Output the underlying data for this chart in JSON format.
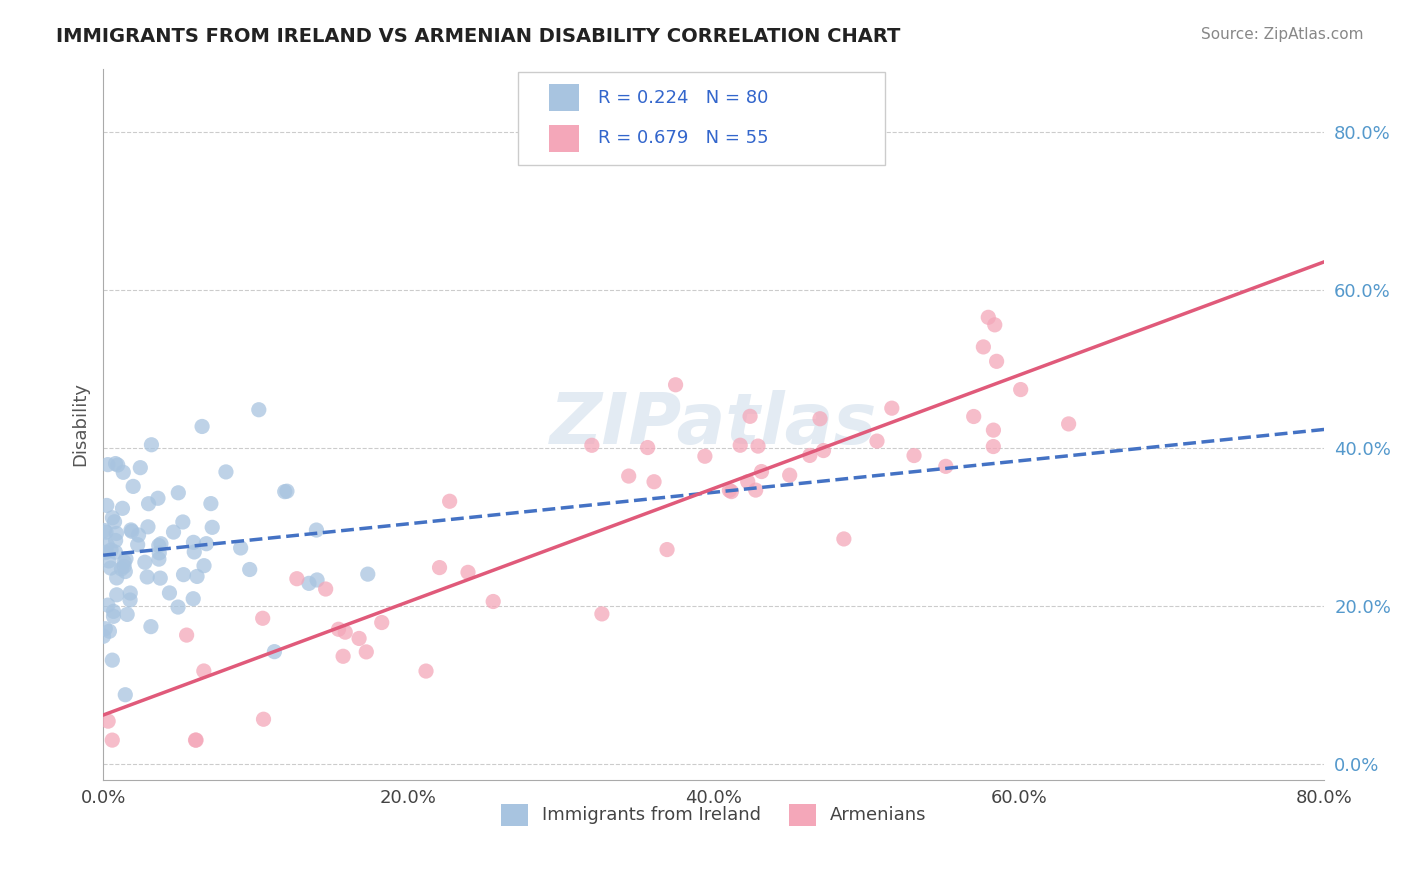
{
  "title": "IMMIGRANTS FROM IRELAND VS ARMENIAN DISABILITY CORRELATION CHART",
  "source": "Source: ZipAtlas.com",
  "xlabel": "",
  "ylabel": "Disability",
  "watermark": "ZIPatlas",
  "series1": {
    "label": "Immigrants from Ireland",
    "R": 0.224,
    "N": 80,
    "color": "#a8c4e0",
    "line_color": "#4472c4",
    "line_style": "--"
  },
  "series2": {
    "label": "Armenians",
    "R": 0.679,
    "N": 55,
    "color": "#f4a7b9",
    "line_color": "#e05a7a",
    "line_style": "-"
  },
  "xlim": [
    0,
    0.8
  ],
  "ylim": [
    -0.02,
    0.88
  ],
  "xticks": [
    0.0,
    0.2,
    0.4,
    0.6,
    0.8
  ],
  "yticks": [
    0.0,
    0.2,
    0.4,
    0.6,
    0.8
  ],
  "xtick_labels": [
    "0.0%",
    "20.0%",
    "40.0%",
    "60.0%",
    "80.0%"
  ],
  "ytick_labels": [
    "0.0%",
    "20.0%",
    "40.0%",
    "60.0%",
    "80.0%"
  ],
  "background_color": "#ffffff",
  "grid_color": "#cccccc",
  "title_color": "#222222",
  "axis_label_color": "#555555",
  "legend_R_N_color": "#3366cc"
}
